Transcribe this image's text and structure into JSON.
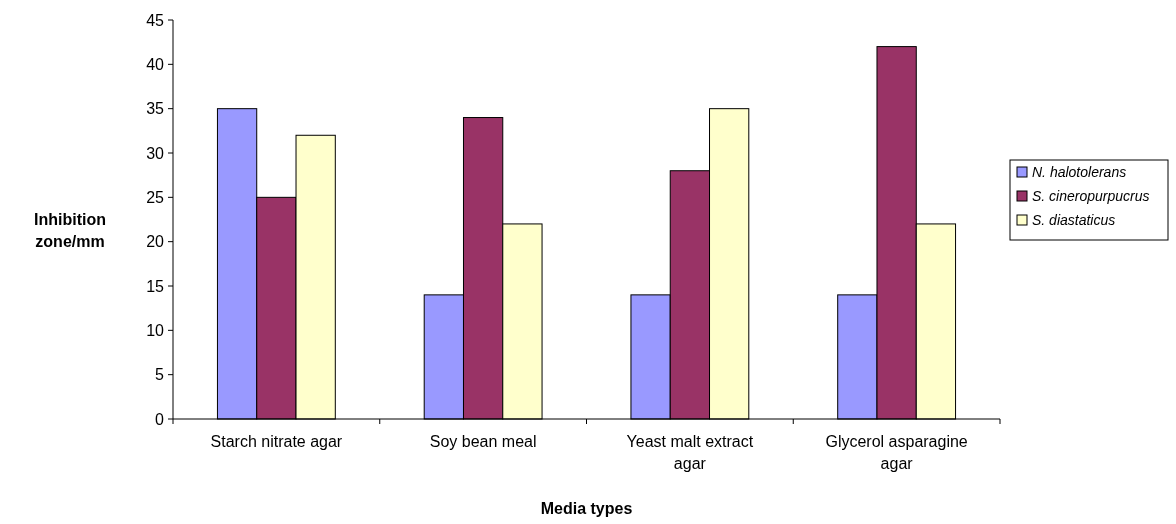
{
  "chart_data": {
    "type": "bar",
    "xlabel": "Media types",
    "ylabel": "Inhibition zone/mm",
    "categories": [
      "Starch nitrate agar",
      "Soy bean meal",
      "Yeast malt extract agar",
      "Glycerol asparagine agar"
    ],
    "series": [
      {
        "name": "N. halotolerans",
        "color": "#9999ff",
        "values": [
          35,
          14,
          14,
          14
        ]
      },
      {
        "name": "S. cineropurpucrus",
        "color": "#993366",
        "values": [
          25,
          34,
          28,
          42
        ]
      },
      {
        "name": "S. diastaticus",
        "color": "#ffffcc",
        "values": [
          32,
          22,
          35,
          22
        ]
      }
    ],
    "ylim": [
      0,
      45
    ],
    "yticks": [
      0,
      5,
      10,
      15,
      20,
      25,
      30,
      35,
      40,
      45
    ],
    "grid": false,
    "legend": "right"
  }
}
